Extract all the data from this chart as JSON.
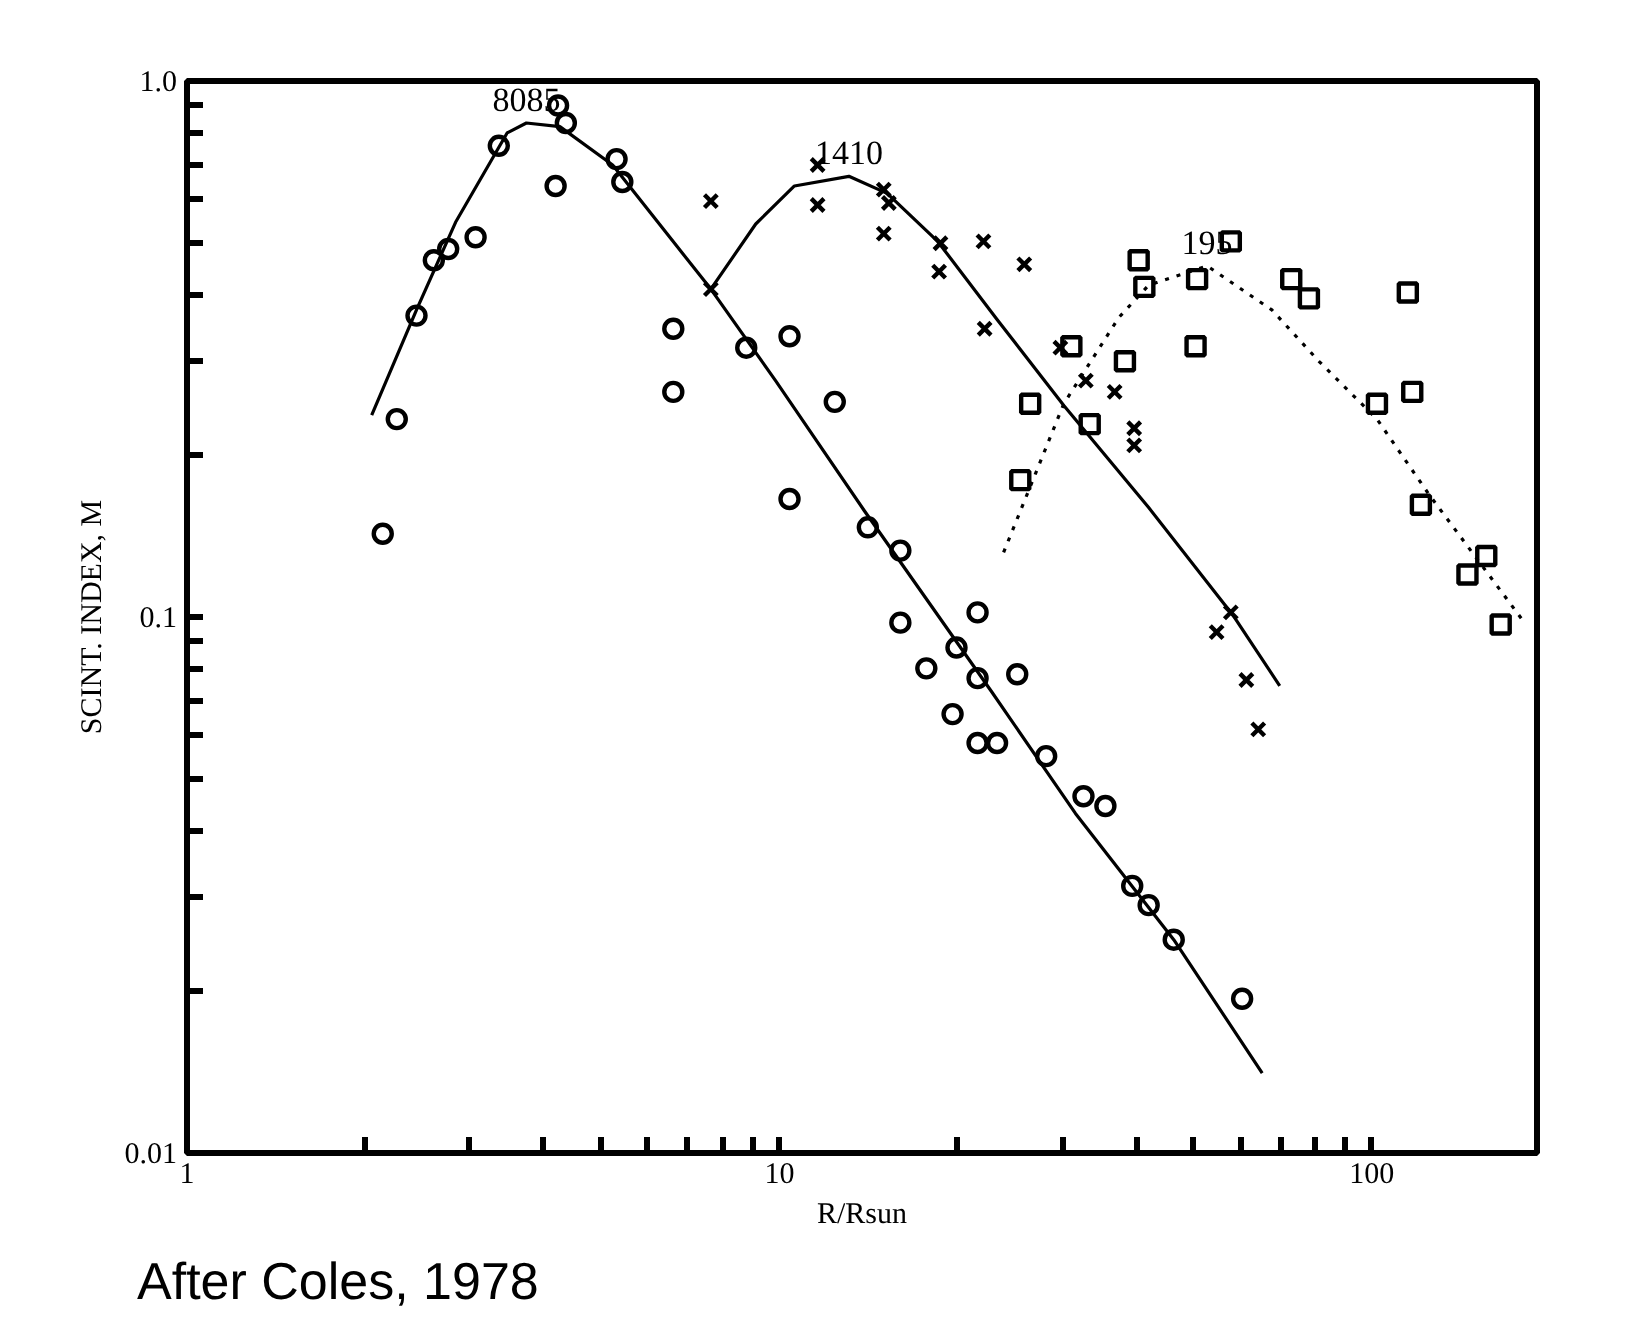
{
  "chart_data": {
    "type": "scatter",
    "xlabel": "R/Rsun",
    "ylabel": "SCINT. INDEX, M",
    "log": "xy",
    "grid": false,
    "legend": false,
    "xlim": [
      1,
      190
    ],
    "ylim": [
      0.01,
      1.0
    ],
    "xticks": [
      1,
      {
        "value": 2,
        "label": null
      },
      {
        "value": 3,
        "label": null
      },
      {
        "value": 4,
        "label": null
      },
      {
        "value": 5,
        "label": null
      },
      {
        "value": 6,
        "label": null
      },
      {
        "value": 7,
        "label": null
      },
      {
        "value": 8,
        "label": null
      },
      {
        "value": 9,
        "label": null
      },
      10,
      {
        "value": 20,
        "label": null
      },
      {
        "value": 30,
        "label": null
      },
      {
        "value": 40,
        "label": null
      },
      {
        "value": 50,
        "label": null
      },
      {
        "value": 60,
        "label": null
      },
      {
        "value": 70,
        "label": null
      },
      {
        "value": 80,
        "label": null
      },
      {
        "value": 90,
        "label": null
      },
      100
    ],
    "yticks": [
      {
        "value": 0.01,
        "label": "0.01"
      },
      {
        "value": 0.02,
        "label": null
      },
      {
        "value": 0.03,
        "label": null
      },
      {
        "value": 0.04,
        "label": null
      },
      {
        "value": 0.05,
        "label": null
      },
      {
        "value": 0.06,
        "label": null
      },
      {
        "value": 0.07,
        "label": null
      },
      {
        "value": 0.08,
        "label": null
      },
      {
        "value": 0.09,
        "label": null
      },
      0.1,
      {
        "value": 0.2,
        "label": null
      },
      {
        "value": 0.3,
        "label": null
      },
      {
        "value": 0.4,
        "label": null
      },
      {
        "value": 0.5,
        "label": null
      },
      {
        "value": 0.6,
        "label": null
      },
      {
        "value": 0.7,
        "label": null
      },
      {
        "value": 0.8,
        "label": null
      },
      {
        "value": 0.9,
        "label": null
      },
      {
        "value": 1.0,
        "label": "1.0"
      }
    ],
    "series": [
      {
        "marker": "circle",
        "color": "#000000",
        "x": [
          2.26,
          2.14,
          2.44,
          2.61,
          2.76,
          3.07,
          3.36,
          4.23,
          4.19,
          4.36,
          5.31,
          5.43,
          6.62,
          6.62,
          8.79,
          10.4,
          12.4,
          10.4,
          14.1,
          16.0,
          16.0,
          21.6,
          19.9,
          17.7,
          21.6,
          25.2,
          19.6,
          21.6,
          23.3,
          28.2,
          32.6,
          35.5,
          39.4,
          42.0,
          46.3,
          60.4
        ],
        "values": [
          0.234,
          0.143,
          0.365,
          0.463,
          0.486,
          0.511,
          0.757,
          0.9,
          0.637,
          0.835,
          0.715,
          0.648,
          0.345,
          0.263,
          0.318,
          0.334,
          0.252,
          0.166,
          0.147,
          0.133,
          0.0976,
          0.102,
          0.0877,
          0.0802,
          0.0769,
          0.0782,
          0.0659,
          0.0582,
          0.0582,
          0.055,
          0.0463,
          0.0444,
          0.0315,
          0.029,
          0.025,
          0.0194
        ]
      },
      {
        "marker": "cross",
        "color": "#000000",
        "x": [
          7.66,
          7.66,
          11.6,
          11.6,
          15.0,
          15.3,
          15.0,
          18.7,
          22.1,
          25.9,
          18.6,
          22.2,
          29.8,
          32.9,
          36.8,
          39.7,
          39.7,
          57.8,
          54.7,
          61.4,
          64.3
        ],
        "values": [
          0.597,
          0.409,
          0.697,
          0.587,
          0.627,
          0.592,
          0.519,
          0.498,
          0.502,
          0.455,
          0.441,
          0.345,
          0.318,
          0.276,
          0.263,
          0.225,
          0.209,
          0.102,
          0.0937,
          0.0763,
          0.0617
        ]
      },
      {
        "marker": "square",
        "color": "#000000",
        "x": [
          57.8,
          40.4,
          41.3,
          50.7,
          73.1,
          78.3,
          115,
          50.4,
          31.1,
          38.3,
          117,
          102,
          26.5,
          33.4,
          25.5,
          121,
          156,
          145,
          165
        ],
        "values": [
          0.502,
          0.463,
          0.413,
          0.427,
          0.427,
          0.393,
          0.403,
          0.32,
          0.32,
          0.3,
          0.263,
          0.25,
          0.25,
          0.229,
          0.18,
          0.162,
          0.13,
          0.12,
          0.0968
        ]
      },
      {
        "type": "line",
        "name": "8085",
        "line_style": "solid",
        "color": "#000000",
        "x": [
          2.05,
          2.44,
          2.84,
          3.47,
          3.74,
          4.26,
          5.23,
          6.73,
          7.66,
          9.85,
          13.9,
          22.8,
          31.6,
          46.3,
          65.3
        ],
        "values": [
          0.238,
          0.374,
          0.545,
          0.8,
          0.835,
          0.822,
          0.697,
          0.49,
          0.409,
          0.276,
          0.158,
          0.0726,
          0.043,
          0.025,
          0.0141
        ]
      },
      {
        "type": "line",
        "name": "1410",
        "line_style": "solid",
        "color": "#000000",
        "x": [
          7.66,
          9.12,
          10.6,
          13.1,
          15.2,
          18.5,
          23.3,
          30.2,
          42.0,
          58.2,
          69.9
        ],
        "values": [
          0.409,
          0.541,
          0.637,
          0.664,
          0.617,
          0.502,
          0.359,
          0.248,
          0.16,
          0.101,
          0.0744
        ]
      },
      {
        "type": "line",
        "name": "195",
        "line_style": "dotted",
        "color": "#000000",
        "x": [
          23.9,
          30.2,
          37.4,
          42.0,
          52.7,
          67.8,
          81.4,
          102,
          125,
          179
        ],
        "values": [
          0.132,
          0.25,
          0.362,
          0.416,
          0.452,
          0.374,
          0.3,
          0.234,
          0.169,
          0.0992
        ]
      }
    ],
    "annotations": [
      "After Coles, 1978"
    ]
  }
}
